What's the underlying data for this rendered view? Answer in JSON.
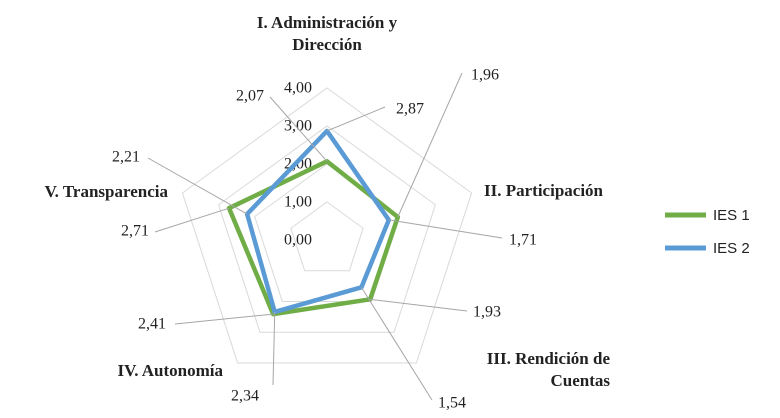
{
  "chart_data": {
    "type": "radar",
    "categories": [
      "I. Administración y Dirección",
      "II. Participación",
      "III. Rendición de Cuentas",
      "IV. Autonomía",
      "V. Transparencia"
    ],
    "series": [
      {
        "name": "IES 1",
        "color": "#70ad47",
        "values": [
          2.07,
          1.96,
          1.93,
          2.41,
          2.71
        ],
        "value_labels": [
          "2,07",
          "1,96",
          "1,93",
          "2,41",
          "2,71"
        ]
      },
      {
        "name": "IES 2",
        "color": "#5b9bd5",
        "values": [
          2.87,
          1.71,
          1.54,
          2.34,
          2.21
        ],
        "value_labels": [
          "2,87",
          "1,71",
          "1,54",
          "2,34",
          "2,21"
        ]
      }
    ],
    "rlim": [
      0,
      4
    ],
    "rticks": [
      {
        "value": 0,
        "label": "0,00"
      },
      {
        "value": 1,
        "label": "1,00"
      },
      {
        "value": 2,
        "label": "2,00"
      },
      {
        "value": 3,
        "label": "3,00"
      },
      {
        "value": 4,
        "label": "4,00"
      }
    ],
    "grid": true,
    "legend": "right"
  }
}
